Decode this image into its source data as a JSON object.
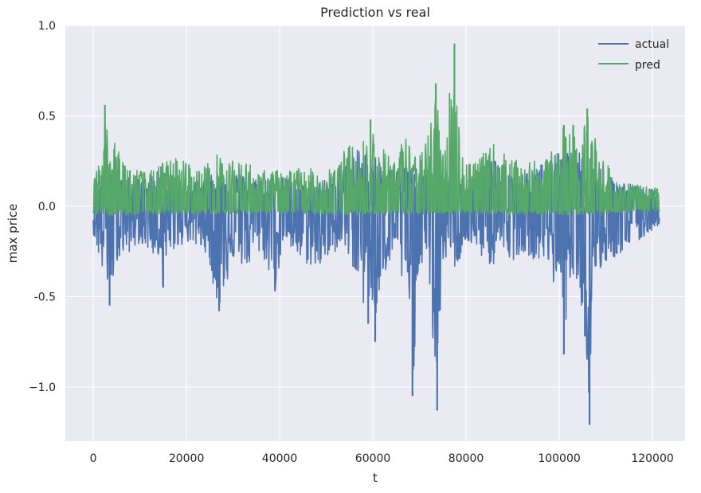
{
  "chart_data": {
    "type": "line",
    "title": "Prediction vs real",
    "xlabel": "t",
    "ylabel": "max price",
    "xlim": [
      -6000,
      127000
    ],
    "ylim": [
      -1.3,
      1.0
    ],
    "xticks": [
      0,
      20000,
      40000,
      60000,
      80000,
      100000,
      120000
    ],
    "xtick_labels": [
      "0",
      "20000",
      "40000",
      "60000",
      "80000",
      "100000",
      "120000"
    ],
    "yticks": [
      1.0,
      0.5,
      0.0,
      -0.5,
      -1.0
    ],
    "ytick_labels": [
      "1.0",
      "0.5",
      "0.0",
      "-0.5",
      "−1.0"
    ],
    "grid": true,
    "legend_position": "top-right",
    "x_max": 121500,
    "series": [
      {
        "name": "actual",
        "color": "#4c72b0",
        "min_envelope": [
          [
            0,
            -0.15
          ],
          [
            2000,
            -0.38
          ],
          [
            2800,
            -0.4
          ],
          [
            3500,
            -0.55
          ],
          [
            5000,
            -0.3
          ],
          [
            8000,
            -0.25
          ],
          [
            10000,
            -0.2
          ],
          [
            14000,
            -0.3
          ],
          [
            15000,
            -0.45
          ],
          [
            17000,
            -0.25
          ],
          [
            20000,
            -0.2
          ],
          [
            24000,
            -0.25
          ],
          [
            27000,
            -0.58
          ],
          [
            30000,
            -0.3
          ],
          [
            33000,
            -0.35
          ],
          [
            36000,
            -0.25
          ],
          [
            39000,
            -0.47
          ],
          [
            41000,
            -0.2
          ],
          [
            44000,
            -0.3
          ],
          [
            48000,
            -0.35
          ],
          [
            51000,
            -0.3
          ],
          [
            53000,
            -0.2
          ],
          [
            56000,
            -0.35
          ],
          [
            58000,
            -0.55
          ],
          [
            59000,
            -0.65
          ],
          [
            60000,
            -0.55
          ],
          [
            60500,
            -0.75
          ],
          [
            61000,
            -0.6
          ],
          [
            62000,
            -0.4
          ],
          [
            65000,
            -0.3
          ],
          [
            67000,
            -0.5
          ],
          [
            68500,
            -1.05
          ],
          [
            70000,
            -0.3
          ],
          [
            72000,
            -0.4
          ],
          [
            73800,
            -1.13
          ],
          [
            75000,
            -0.3
          ],
          [
            78000,
            -0.35
          ],
          [
            80000,
            -0.2
          ],
          [
            84000,
            -0.3
          ],
          [
            86000,
            -0.35
          ],
          [
            88000,
            -0.25
          ],
          [
            90000,
            -0.3
          ],
          [
            92000,
            -0.25
          ],
          [
            95000,
            -0.3
          ],
          [
            97000,
            -0.3
          ],
          [
            99000,
            -0.45
          ],
          [
            100000,
            -0.35
          ],
          [
            101000,
            -0.82
          ],
          [
            102000,
            -0.4
          ],
          [
            104000,
            -0.4
          ],
          [
            105500,
            -0.72
          ],
          [
            106500,
            -1.21
          ],
          [
            107500,
            -0.5
          ],
          [
            109000,
            -0.35
          ],
          [
            111000,
            -0.3
          ],
          [
            114000,
            -0.25
          ],
          [
            117000,
            -0.2
          ],
          [
            121500,
            -0.1
          ]
        ],
        "max_envelope": [
          [
            0,
            0.08
          ],
          [
            2000,
            0.2
          ],
          [
            3000,
            0.25
          ],
          [
            5000,
            0.2
          ],
          [
            8000,
            0.15
          ],
          [
            12000,
            0.15
          ],
          [
            14000,
            0.2
          ],
          [
            17000,
            0.18
          ],
          [
            20000,
            0.12
          ],
          [
            24000,
            0.15
          ],
          [
            27000,
            0.2
          ],
          [
            30000,
            0.2
          ],
          [
            34000,
            0.15
          ],
          [
            38000,
            0.18
          ],
          [
            42000,
            0.15
          ],
          [
            46000,
            0.12
          ],
          [
            50000,
            0.15
          ],
          [
            53000,
            0.2
          ],
          [
            55000,
            0.3
          ],
          [
            58000,
            0.32
          ],
          [
            60000,
            0.3
          ],
          [
            62000,
            0.25
          ],
          [
            64000,
            0.2
          ],
          [
            66000,
            0.25
          ],
          [
            68000,
            0.22
          ],
          [
            70000,
            0.2
          ],
          [
            73000,
            0.2
          ],
          [
            76000,
            0.18
          ],
          [
            80000,
            0.15
          ],
          [
            84000,
            0.22
          ],
          [
            86000,
            0.35
          ],
          [
            88000,
            0.25
          ],
          [
            91000,
            0.15
          ],
          [
            94000,
            0.2
          ],
          [
            97000,
            0.25
          ],
          [
            100000,
            0.3
          ],
          [
            103000,
            0.3
          ],
          [
            106000,
            0.3
          ],
          [
            108000,
            0.25
          ],
          [
            112000,
            0.15
          ],
          [
            116000,
            0.12
          ],
          [
            121500,
            0.08
          ]
        ],
        "spikes": [
          [
            3500,
            -0.55
          ],
          [
            15000,
            -0.45
          ],
          [
            27000,
            -0.58
          ],
          [
            39000,
            -0.47
          ],
          [
            59000,
            -0.65
          ],
          [
            60500,
            -0.75
          ],
          [
            68500,
            -1.05
          ],
          [
            73800,
            -1.13
          ],
          [
            101000,
            -0.82
          ],
          [
            105500,
            -0.72
          ],
          [
            106500,
            -1.21
          ]
        ]
      },
      {
        "name": "pred",
        "color": "#55a868",
        "min_envelope": [
          [
            0,
            -0.05
          ],
          [
            5000,
            -0.05
          ],
          [
            20000,
            -0.04
          ],
          [
            40000,
            -0.04
          ],
          [
            60000,
            -0.05
          ],
          [
            80000,
            -0.04
          ],
          [
            100000,
            -0.05
          ],
          [
            121500,
            -0.03
          ]
        ],
        "max_envelope": [
          [
            0,
            0.1
          ],
          [
            1000,
            0.35
          ],
          [
            2000,
            0.3
          ],
          [
            2500,
            0.56
          ],
          [
            3500,
            0.35
          ],
          [
            5000,
            0.35
          ],
          [
            7000,
            0.25
          ],
          [
            10000,
            0.2
          ],
          [
            13000,
            0.2
          ],
          [
            15000,
            0.25
          ],
          [
            19000,
            0.28
          ],
          [
            22000,
            0.2
          ],
          [
            25000,
            0.25
          ],
          [
            27000,
            0.3
          ],
          [
            30000,
            0.25
          ],
          [
            33000,
            0.25
          ],
          [
            36000,
            0.2
          ],
          [
            40000,
            0.2
          ],
          [
            45000,
            0.22
          ],
          [
            48000,
            0.2
          ],
          [
            52000,
            0.25
          ],
          [
            55000,
            0.35
          ],
          [
            57000,
            0.3
          ],
          [
            59500,
            0.48
          ],
          [
            61000,
            0.35
          ],
          [
            63000,
            0.3
          ],
          [
            65000,
            0.3
          ],
          [
            67000,
            0.4
          ],
          [
            69000,
            0.3
          ],
          [
            71000,
            0.3
          ],
          [
            73500,
            0.68
          ],
          [
            75000,
            0.3
          ],
          [
            77500,
            0.9
          ],
          [
            79000,
            0.3
          ],
          [
            82000,
            0.25
          ],
          [
            84000,
            0.3
          ],
          [
            86000,
            0.35
          ],
          [
            88000,
            0.3
          ],
          [
            91000,
            0.25
          ],
          [
            94000,
            0.25
          ],
          [
            97000,
            0.25
          ],
          [
            99000,
            0.35
          ],
          [
            101000,
            0.45
          ],
          [
            103000,
            0.45
          ],
          [
            104500,
            0.35
          ],
          [
            106000,
            0.54
          ],
          [
            107000,
            0.45
          ],
          [
            109000,
            0.3
          ],
          [
            112000,
            0.15
          ],
          [
            116000,
            0.12
          ],
          [
            121500,
            0.1
          ]
        ],
        "spikes": [
          [
            2500,
            0.56
          ],
          [
            59500,
            0.48
          ],
          [
            73500,
            0.68
          ],
          [
            77500,
            0.9
          ],
          [
            101000,
            0.45
          ],
          [
            103000,
            0.45
          ],
          [
            106000,
            0.54
          ]
        ]
      }
    ]
  }
}
